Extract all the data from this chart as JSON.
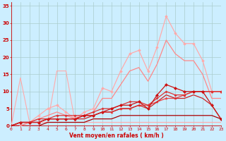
{
  "title": "",
  "xlabel": "Vent moyen/en rafales ( km/h )",
  "bg_color": "#cceeff",
  "grid_color": "#aacccc",
  "x_ticks": [
    0,
    1,
    2,
    3,
    4,
    5,
    6,
    7,
    8,
    9,
    10,
    11,
    12,
    13,
    14,
    15,
    16,
    17,
    18,
    19,
    20,
    21,
    22,
    23
  ],
  "y_ticks": [
    0,
    5,
    10,
    15,
    20,
    25,
    30,
    35
  ],
  "xlim": [
    0,
    23
  ],
  "ylim": [
    0,
    36
  ],
  "lines": [
    {
      "x": [
        0,
        1,
        2,
        3,
        4,
        5,
        6,
        7,
        8,
        9,
        10,
        11,
        12,
        13,
        14,
        15,
        16,
        17,
        18,
        19,
        20,
        21,
        22,
        23
      ],
      "y": [
        0,
        14,
        1,
        1,
        1,
        16,
        16,
        1,
        1,
        1,
        1,
        1,
        1,
        1,
        1,
        1,
        1,
        1,
        1,
        1,
        1,
        1,
        1,
        1
      ],
      "color": "#ffaaaa",
      "lw": 0.8,
      "marker": null
    },
    {
      "x": [
        0,
        1,
        2,
        3,
        4,
        5,
        6,
        7,
        8,
        9,
        10,
        11,
        12,
        13,
        14,
        15,
        16,
        17,
        18,
        19,
        20,
        21,
        22,
        23
      ],
      "y": [
        0,
        0,
        1,
        3,
        5,
        6,
        4,
        2,
        4,
        5,
        11,
        10,
        16,
        21,
        22,
        16,
        23,
        32,
        27,
        24,
        24,
        19,
        10,
        10
      ],
      "color": "#ffaaaa",
      "lw": 0.9,
      "marker": "D",
      "ms": 1.8
    },
    {
      "x": [
        0,
        1,
        2,
        3,
        4,
        5,
        6,
        7,
        8,
        9,
        10,
        11,
        12,
        13,
        14,
        15,
        16,
        17,
        18,
        19,
        20,
        21,
        22,
        23
      ],
      "y": [
        0,
        0,
        1,
        2,
        3,
        4,
        3,
        2,
        3,
        4,
        8,
        8,
        12,
        16,
        17,
        13,
        18,
        25,
        21,
        19,
        19,
        15,
        8,
        8
      ],
      "color": "#ff8888",
      "lw": 0.9,
      "marker": null
    },
    {
      "x": [
        0,
        1,
        2,
        3,
        4,
        5,
        6,
        7,
        8,
        9,
        10,
        11,
        12,
        13,
        14,
        15,
        16,
        17,
        18,
        19,
        20,
        21,
        22,
        23
      ],
      "y": [
        0,
        1,
        1,
        1,
        2,
        2,
        2,
        2,
        3,
        3,
        4,
        4,
        5,
        5,
        6,
        6,
        7,
        8,
        8,
        9,
        10,
        10,
        10,
        10
      ],
      "color": "#ee4444",
      "lw": 0.9,
      "marker": "^",
      "ms": 2.0
    },
    {
      "x": [
        0,
        1,
        2,
        3,
        4,
        5,
        6,
        7,
        8,
        9,
        10,
        11,
        12,
        13,
        14,
        15,
        16,
        17,
        18,
        19,
        20,
        21,
        22,
        23
      ],
      "y": [
        0,
        1,
        1,
        2,
        2,
        3,
        3,
        3,
        3,
        4,
        5,
        5,
        6,
        7,
        7,
        6,
        8,
        10,
        9,
        9,
        10,
        10,
        10,
        10
      ],
      "color": "#dd3333",
      "lw": 0.9,
      "marker": "P",
      "ms": 2.0
    },
    {
      "x": [
        0,
        1,
        2,
        3,
        4,
        5,
        6,
        7,
        8,
        9,
        10,
        11,
        12,
        13,
        14,
        15,
        16,
        17,
        18,
        19,
        20,
        21,
        22,
        23
      ],
      "y": [
        0,
        1,
        1,
        1,
        2,
        2,
        2,
        2,
        3,
        3,
        4,
        5,
        6,
        6,
        7,
        5,
        9,
        12,
        11,
        10,
        10,
        10,
        6,
        2
      ],
      "color": "#cc1111",
      "lw": 0.9,
      "marker": "D",
      "ms": 2.0
    },
    {
      "x": [
        0,
        1,
        2,
        3,
        4,
        5,
        6,
        7,
        8,
        9,
        10,
        11,
        12,
        13,
        14,
        15,
        16,
        17,
        18,
        19,
        20,
        21,
        22,
        23
      ],
      "y": [
        0,
        1,
        1,
        1,
        2,
        2,
        2,
        2,
        2,
        3,
        4,
        4,
        5,
        5,
        6,
        5,
        7,
        9,
        8,
        8,
        9,
        8,
        6,
        2
      ],
      "color": "#cc2222",
      "lw": 0.9,
      "marker": null
    },
    {
      "x": [
        0,
        1,
        2,
        3,
        4,
        5,
        6,
        7,
        8,
        9,
        10,
        11,
        12,
        13,
        14,
        15,
        16,
        17,
        18,
        19,
        20,
        21,
        22,
        23
      ],
      "y": [
        0,
        0,
        0,
        0,
        1,
        1,
        1,
        1,
        1,
        2,
        2,
        2,
        3,
        3,
        3,
        3,
        3,
        3,
        3,
        3,
        3,
        3,
        3,
        2
      ],
      "color": "#aa0000",
      "lw": 0.9,
      "marker": null
    }
  ]
}
